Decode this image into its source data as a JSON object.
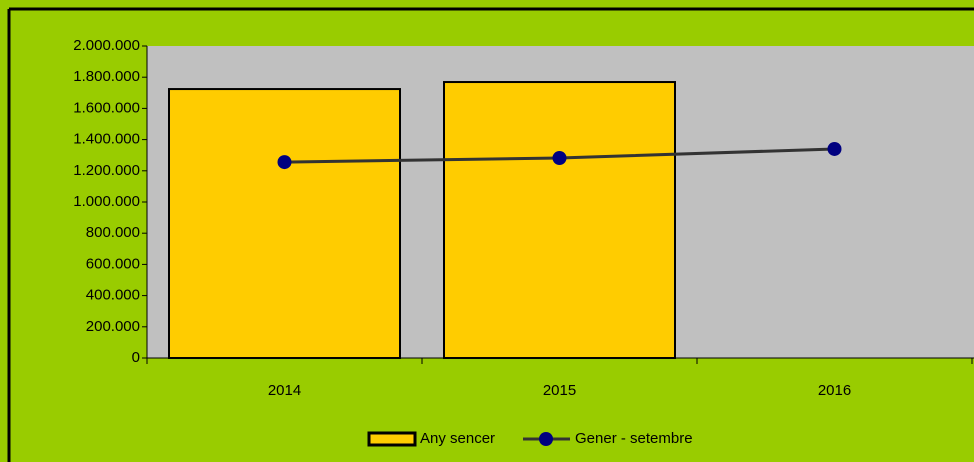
{
  "chart_data": {
    "type": "bar",
    "categories": [
      "2014",
      "2015",
      "2016"
    ],
    "series": [
      {
        "name": "Any sencer",
        "type": "bar",
        "color": "#ffcc00",
        "values": [
          1724000,
          1769000,
          null
        ]
      },
      {
        "name": "Gener - setembre",
        "type": "line",
        "color": "#000080",
        "line_color": "#333333",
        "values": [
          1256000,
          1282000,
          1340000
        ]
      }
    ],
    "ylim": [
      0,
      2000000
    ],
    "yticks": [
      0,
      {
        "value": 200000,
        "label": "200.000"
      },
      {
        "value": 400000,
        "label": "400.000"
      },
      {
        "value": 600000,
        "label": "600.000"
      },
      {
        "value": 800000,
        "label": "800.000"
      },
      {
        "value": 1000000,
        "label": "1.000.000"
      },
      {
        "value": 1200000,
        "label": "1.200.000"
      },
      {
        "value": 1400000,
        "label": "1.400.000"
      },
      {
        "value": 1600000,
        "label": "1.600.000"
      },
      {
        "value": 1800000,
        "label": "1.800.000"
      },
      {
        "value": 2000000,
        "label": "2.000.000"
      }
    ],
    "grid": false,
    "legend": "bottom"
  }
}
